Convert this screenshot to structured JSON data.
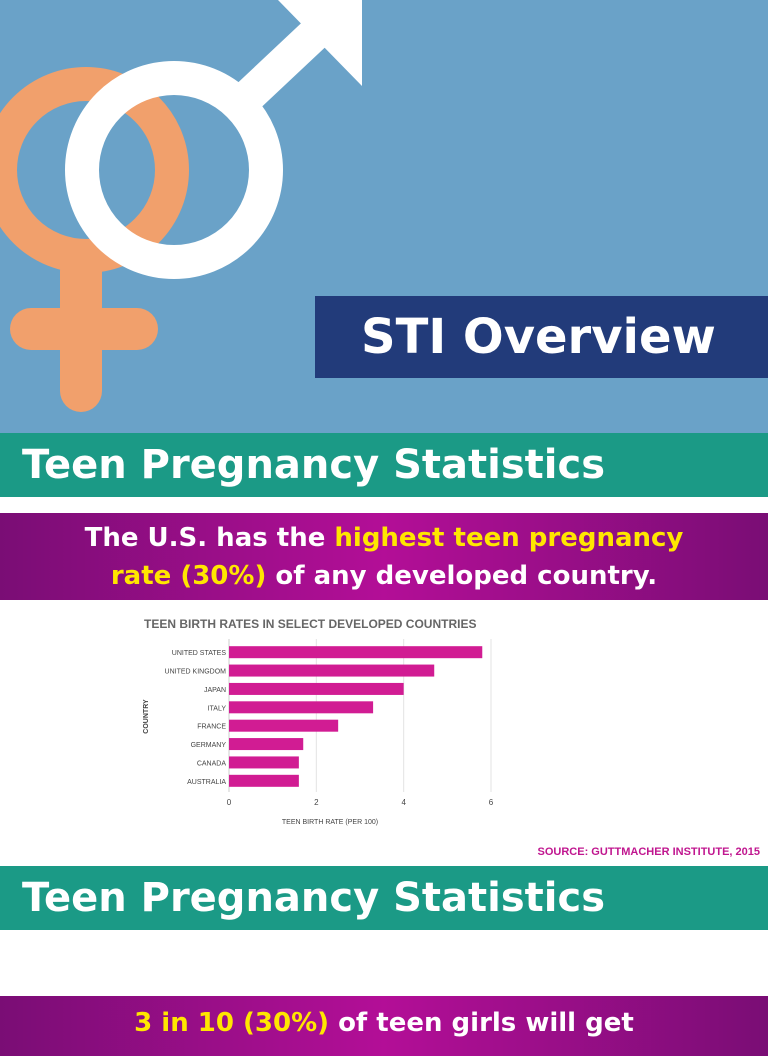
{
  "hero": {
    "title": "STI Overview",
    "colors": {
      "background": "#6aa2c8",
      "female_symbol": "#f1a06c",
      "male_symbol": "#ffffff",
      "title_box": "#223b7a"
    },
    "icons": [
      "female-symbol-icon",
      "male-symbol-icon"
    ]
  },
  "section1": {
    "heading": "Teen Pregnancy Statistics",
    "callout": {
      "line1_plain": "The U.S. has the ",
      "line1_highlight": "highest teen pregnancy",
      "line2_highlight": "rate (30%)",
      "line2_plain": " of any developed country."
    },
    "source": "SOURCE: GUTTMACHER INSTITUTE, 2015"
  },
  "chart_data": {
    "type": "bar",
    "orientation": "horizontal",
    "title": "TEEN BIRTH RATES IN SELECT DEVELOPED COUNTRIES",
    "xlabel": "TEEN BIRTH RATE (PER 100)",
    "ylabel": "COUNTRY",
    "categories": [
      "UNITED STATES",
      "UNITED KINGDOM",
      "JAPAN",
      "ITALY",
      "FRANCE",
      "GERMANY",
      "CANADA",
      "AUSTRALIA"
    ],
    "values": [
      5.8,
      4.7,
      4.0,
      3.3,
      2.5,
      1.7,
      1.6,
      1.6
    ],
    "xlim": [
      0,
      6
    ],
    "xticks": [
      0,
      2,
      4,
      6
    ],
    "grid": true,
    "bar_color": "#d11c93"
  },
  "section2": {
    "heading": "Teen Pregnancy Statistics",
    "callout": {
      "highlight": "3 in 10 (30%)",
      "plain": " of teen girls will get"
    }
  },
  "colors": {
    "band": "#1b9a86",
    "callout": "#a10e8a",
    "highlight": "#ffe600",
    "source": "#c0168f"
  }
}
